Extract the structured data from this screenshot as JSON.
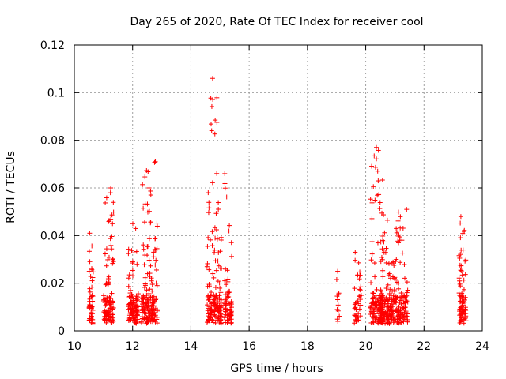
{
  "chart_data": {
    "type": "scatter",
    "title": "Day 265 of 2020, Rate Of TEC Index for receiver cool",
    "xlabel": "GPS time / hours",
    "ylabel": "ROTI / TECUs",
    "xlim": [
      10,
      24
    ],
    "ylim": [
      0,
      0.12
    ],
    "xticks": [
      10,
      12,
      14,
      16,
      18,
      20,
      22,
      24
    ],
    "xtick_labels": [
      "10",
      "12",
      "14",
      "16",
      "18",
      "20",
      "22",
      "24"
    ],
    "yticks": [
      0,
      0.02,
      0.04,
      0.06,
      0.08,
      0.1,
      0.12
    ],
    "ytick_labels": [
      "0",
      "0.02",
      "0.04",
      "0.06",
      "0.08",
      "0.1",
      "0.12"
    ],
    "grid": true,
    "marker": "+",
    "color": "#ff0000",
    "clusters": [
      {
        "x_min": 10.5,
        "x_max": 10.65,
        "y_max": 0.041,
        "count": 50
      },
      {
        "x_min": 11.0,
        "x_max": 11.35,
        "y_max": 0.06,
        "count": 110
      },
      {
        "x_min": 11.85,
        "x_max": 12.2,
        "y_max": 0.045,
        "count": 110
      },
      {
        "x_min": 12.3,
        "x_max": 12.85,
        "y_max": 0.071,
        "count": 170
      },
      {
        "x_min": 14.55,
        "x_max": 15.05,
        "y_max": 0.106,
        "count": 170
      },
      {
        "x_min": 15.15,
        "x_max": 15.4,
        "y_max": 0.066,
        "count": 70
      },
      {
        "x_min": 19.0,
        "x_max": 19.1,
        "y_max": 0.025,
        "count": 12
      },
      {
        "x_min": 19.6,
        "x_max": 19.85,
        "y_max": 0.033,
        "count": 40
      },
      {
        "x_min": 20.15,
        "x_max": 20.6,
        "y_max": 0.077,
        "count": 130
      },
      {
        "x_min": 20.5,
        "x_max": 21.45,
        "y_max": 0.051,
        "count": 260
      },
      {
        "x_min": 23.2,
        "x_max": 23.45,
        "y_max": 0.048,
        "count": 90
      }
    ]
  }
}
